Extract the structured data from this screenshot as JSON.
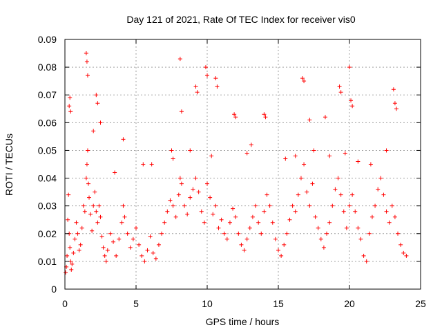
{
  "chart_data": {
    "type": "scatter",
    "title": "Day 121 of 2021, Rate Of TEC Index for receiver vis0",
    "xlabel": "GPS time / hours",
    "ylabel": "ROTI / TECUs",
    "xlim": [
      0,
      25
    ],
    "ylim": [
      0,
      0.09
    ],
    "xticks": [
      0,
      5,
      10,
      15,
      20,
      25
    ],
    "xtick_labels": [
      "0",
      "5",
      "10",
      "15",
      "20",
      "25"
    ],
    "yticks": [
      0,
      0.01,
      0.02,
      0.03,
      0.04,
      0.05,
      0.06,
      0.07,
      0.08,
      0.09
    ],
    "ytick_labels": [
      "0",
      "0.01",
      "0.02",
      "0.03",
      "0.04",
      "0.05",
      "0.06",
      "0.07",
      "0.08",
      "0.09"
    ],
    "grid": true,
    "marker": "+",
    "series": [
      {
        "name": "ROTI",
        "color": "#ff0000",
        "x": [
          0.05,
          0.1,
          0.15,
          0.2,
          0.25,
          0.3,
          0.35,
          0.4,
          0.45,
          0.5,
          0.6,
          0.7,
          0.8,
          0.9,
          1.0,
          1.1,
          1.2,
          1.3,
          1.4,
          1.5,
          1.55,
          1.6,
          1.65,
          1.7,
          1.8,
          1.9,
          2.0,
          2.1,
          2.2,
          2.3,
          2.4,
          2.5,
          2.6,
          2.7,
          2.8,
          2.9,
          3.0,
          3.2,
          3.4,
          3.6,
          3.8,
          4.0,
          4.1,
          4.2,
          4.4,
          4.6,
          4.8,
          5.0,
          5.2,
          5.4,
          5.6,
          5.8,
          6.0,
          6.2,
          6.4,
          6.6,
          6.8,
          7.0,
          7.2,
          7.4,
          7.6,
          7.8,
          8.0,
          8.1,
          8.2,
          8.4,
          8.6,
          8.8,
          9.0,
          9.2,
          9.4,
          9.6,
          9.8,
          10.0,
          10.2,
          10.4,
          10.6,
          10.8,
          11.0,
          11.2,
          11.4,
          11.6,
          11.8,
          12.0,
          12.2,
          12.4,
          12.6,
          12.8,
          13.0,
          13.2,
          13.4,
          13.6,
          13.8,
          14.0,
          14.2,
          14.4,
          14.6,
          14.8,
          15.0,
          15.2,
          15.4,
          15.6,
          15.8,
          16.0,
          16.2,
          16.4,
          16.6,
          16.8,
          17.0,
          17.2,
          17.4,
          17.6,
          17.8,
          18.0,
          18.2,
          18.4,
          18.6,
          18.8,
          19.0,
          19.2,
          19.4,
          19.6,
          19.8,
          20.0,
          20.2,
          20.4,
          20.6,
          20.8,
          21.0,
          21.2,
          21.4,
          21.6,
          21.8,
          22.0,
          22.2,
          22.4,
          22.6,
          22.8,
          23.0,
          23.2,
          23.4,
          23.6,
          23.8,
          24.0,
          0.3,
          0.35,
          0.4,
          1.5,
          1.55,
          1.6,
          2.2,
          2.3,
          2.5,
          4.1,
          5.5,
          8.1,
          8.2,
          9.2,
          9.3,
          9.9,
          10.0,
          10.6,
          10.7,
          11.9,
          12.0,
          14.0,
          14.1,
          16.7,
          16.8,
          17.2,
          18.3,
          19.3,
          19.4,
          20.0,
          20.1,
          20.2,
          23.1,
          23.2,
          23.3,
          2.0,
          3.5,
          6.1,
          7.5,
          7.6,
          8.8,
          10.3,
          12.8,
          13.1,
          15.5,
          16.2,
          17.5,
          18.6,
          19.7,
          20.6,
          21.5,
          22.6
        ],
        "y": [
          0.006,
          0.008,
          0.012,
          0.025,
          0.034,
          0.02,
          0.015,
          0.01,
          0.007,
          0.009,
          0.013,
          0.018,
          0.024,
          0.02,
          0.014,
          0.016,
          0.022,
          0.03,
          0.028,
          0.04,
          0.045,
          0.05,
          0.038,
          0.033,
          0.027,
          0.021,
          0.03,
          0.035,
          0.028,
          0.024,
          0.03,
          0.026,
          0.019,
          0.015,
          0.012,
          0.01,
          0.014,
          0.02,
          0.017,
          0.012,
          0.018,
          0.024,
          0.03,
          0.026,
          0.02,
          0.015,
          0.018,
          0.022,
          0.016,
          0.012,
          0.01,
          0.014,
          0.019,
          0.013,
          0.011,
          0.016,
          0.02,
          0.024,
          0.028,
          0.032,
          0.03,
          0.026,
          0.034,
          0.04,
          0.038,
          0.03,
          0.027,
          0.033,
          0.036,
          0.04,
          0.035,
          0.028,
          0.024,
          0.038,
          0.033,
          0.027,
          0.03,
          0.022,
          0.025,
          0.02,
          0.018,
          0.024,
          0.029,
          0.026,
          0.02,
          0.016,
          0.014,
          0.018,
          0.022,
          0.026,
          0.03,
          0.024,
          0.02,
          0.028,
          0.034,
          0.03,
          0.024,
          0.018,
          0.014,
          0.012,
          0.016,
          0.02,
          0.025,
          0.03,
          0.028,
          0.034,
          0.04,
          0.045,
          0.035,
          0.03,
          0.038,
          0.026,
          0.022,
          0.018,
          0.015,
          0.02,
          0.024,
          0.03,
          0.036,
          0.04,
          0.034,
          0.028,
          0.022,
          0.03,
          0.034,
          0.028,
          0.022,
          0.018,
          0.012,
          0.01,
          0.02,
          0.026,
          0.03,
          0.036,
          0.04,
          0.034,
          0.028,
          0.024,
          0.03,
          0.026,
          0.02,
          0.016,
          0.013,
          0.012,
          0.066,
          0.069,
          0.064,
          0.085,
          0.082,
          0.077,
          0.07,
          0.067,
          0.06,
          0.054,
          0.045,
          0.083,
          0.064,
          0.073,
          0.071,
          0.08,
          0.077,
          0.076,
          0.073,
          0.063,
          0.062,
          0.063,
          0.062,
          0.076,
          0.075,
          0.061,
          0.062,
          0.073,
          0.071,
          0.08,
          0.068,
          0.066,
          0.072,
          0.067,
          0.065,
          0.057,
          0.042,
          0.045,
          0.05,
          0.047,
          0.05,
          0.048,
          0.049,
          0.052,
          0.047,
          0.048,
          0.05,
          0.048,
          0.049,
          0.046,
          0.045,
          0.05
        ]
      }
    ]
  }
}
